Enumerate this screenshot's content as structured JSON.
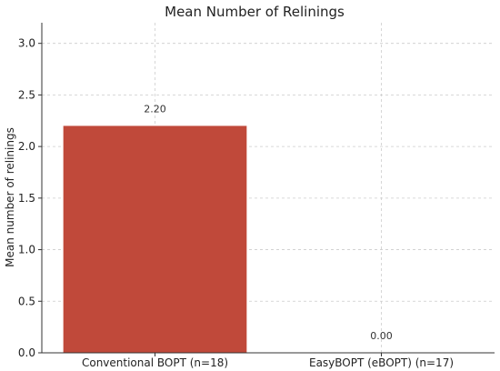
{
  "chart_data": {
    "type": "bar",
    "title": "Mean Number of Relinings",
    "xlabel": "",
    "ylabel": "Mean number of relinings",
    "categories": [
      "Conventional BOPT (n=18)",
      "EasyBOPT (eBOPT) (n=17)"
    ],
    "values": [
      2.2,
      0.0
    ],
    "data_labels": [
      "2.20",
      "0.00"
    ],
    "ylim": [
      0,
      3.2
    ],
    "yticks": [
      0.0,
      0.5,
      1.0,
      1.5,
      2.0,
      2.5,
      3.0
    ],
    "ytick_labels": [
      "0.0",
      "0.5",
      "1.0",
      "1.5",
      "2.0",
      "2.5",
      "3.0"
    ],
    "grid": true,
    "bar_color": "#c0493a"
  }
}
